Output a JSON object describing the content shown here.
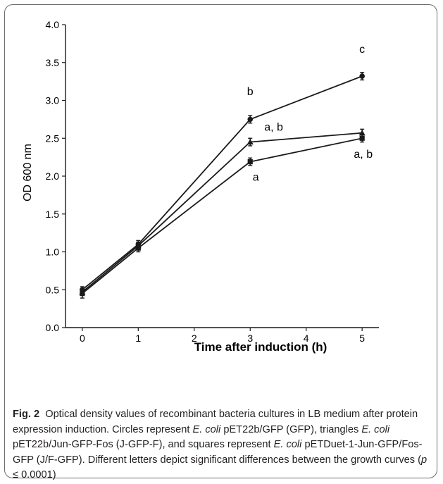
{
  "chart_data": {
    "type": "line",
    "xlabel": "Time after induction (h)",
    "ylabel": "OD 600 nm",
    "xlim": [
      -0.3,
      5.3
    ],
    "ylim": [
      0.0,
      4.0
    ],
    "x_ticks": [
      "0",
      "1",
      "2",
      "3",
      "4",
      "5"
    ],
    "y_ticks": [
      "0.0",
      "0.5",
      "1.0",
      "1.5",
      "2.0",
      "2.5",
      "3.0",
      "3.5",
      "4.0"
    ],
    "grid": false,
    "legend": "none",
    "series": [
      {
        "marker": "circle",
        "x": [
          0,
          1,
          3,
          5
        ],
        "y": [
          0.5,
          1.1,
          2.75,
          3.32
        ],
        "error": [
          0.04,
          0.05,
          0.05,
          0.05
        ]
      },
      {
        "marker": "triangle",
        "x": [
          0,
          1,
          3,
          5
        ],
        "y": [
          0.47,
          1.08,
          2.45,
          2.57
        ],
        "error": [
          0.04,
          0.05,
          0.05,
          0.05
        ]
      },
      {
        "marker": "square",
        "x": [
          0,
          1,
          3,
          5
        ],
        "y": [
          0.45,
          1.05,
          2.19,
          2.5
        ],
        "error": [
          0.06,
          0.05,
          0.05,
          0.05
        ]
      }
    ],
    "annotations": [
      {
        "text": "b",
        "x": 3,
        "y": 3.07
      },
      {
        "text": "a, b",
        "x": 3.42,
        "y": 2.6
      },
      {
        "text": "a",
        "x": 3.1,
        "y": 1.94
      },
      {
        "text": "c",
        "x": 5,
        "y": 3.63
      },
      {
        "text": "a, b",
        "x": 5.02,
        "y": 2.24
      }
    ]
  },
  "caption": {
    "label": "Fig. 2",
    "t1": "Optical density values of recombinant bacteria cultures in LB medium after protein expression induction. Circles represent ",
    "t2": " pET22b/GFP (GFP), triangles ",
    "t3": " pET22b/Jun-GFP-Fos (J-GFP-F), and squares represent ",
    "t4": " pETDuet-1-Jun-GFP/Fos-GFP (J/F-GFP). Different letters depict significant differences between the growth curves (",
    "t5": "p",
    "t6": " ≤ 0.0001)",
    "species": "E. coli"
  },
  "colors": {
    "line": "#1a1a1a",
    "text": "#231f20",
    "border": "#6d6d6d"
  }
}
